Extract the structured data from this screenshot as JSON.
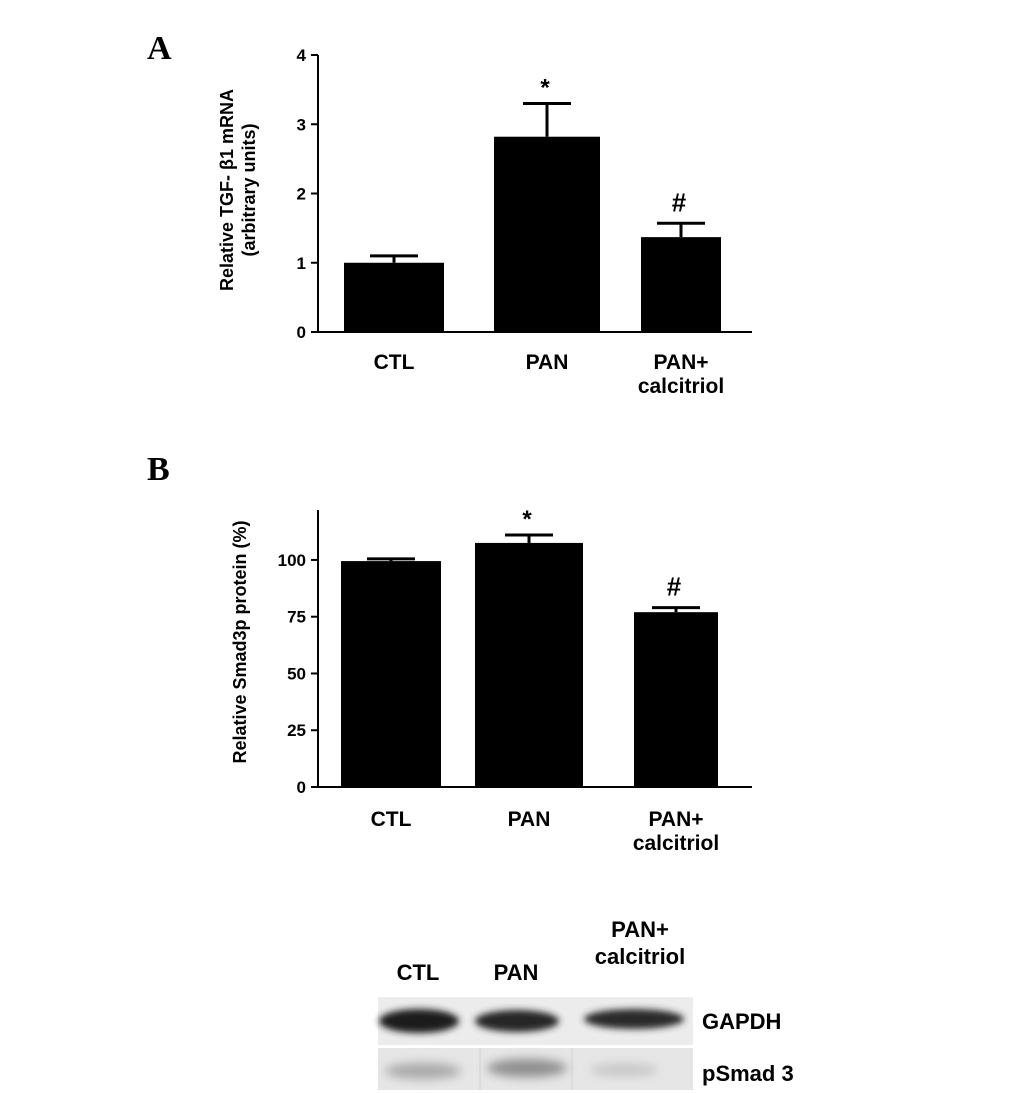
{
  "chart_data": [
    {
      "panel": "A",
      "type": "bar",
      "categories": [
        [
          "CTL"
        ],
        [
          "PAN"
        ],
        [
          "PAN+",
          "calcitriol"
        ]
      ],
      "values": [
        1.0,
        2.82,
        1.37
      ],
      "errors": [
        0.1,
        0.48,
        0.2
      ],
      "annotations": [
        "",
        "*",
        "#"
      ],
      "ylabel": [
        "Relative TGF- β1 mRNA",
        "(arbitrary units)"
      ],
      "ylim": [
        0,
        4
      ],
      "yticks": [
        "0",
        "1",
        "2",
        "3",
        "4"
      ],
      "ytick_values": [
        0,
        1,
        2,
        3,
        4
      ],
      "grid": false
    },
    {
      "panel": "B",
      "type": "bar",
      "categories": [
        [
          "CTL"
        ],
        [
          "PAN"
        ],
        [
          "PAN+",
          "calcitriol"
        ]
      ],
      "values": [
        99.5,
        107.5,
        77.0
      ],
      "errors": [
        1.0,
        3.5,
        2.0
      ],
      "annotations": [
        "",
        "*",
        "#"
      ],
      "ylabel": [
        "Relative Smad3p protein (%)"
      ],
      "ylim": [
        0,
        122
      ],
      "yticks": [
        "0",
        "25",
        "50",
        "75",
        "100"
      ],
      "ytick_values": [
        0,
        25,
        50,
        75,
        100
      ],
      "grid": false
    }
  ],
  "blot": {
    "lanes": [
      [
        "CTL"
      ],
      [
        "PAN"
      ],
      [
        "PAN+",
        "calcitriol"
      ]
    ],
    "rows": [
      "GAPDH",
      "pSmad 3"
    ]
  },
  "colors": {
    "bar": "#000000",
    "background": "#ffffff"
  }
}
